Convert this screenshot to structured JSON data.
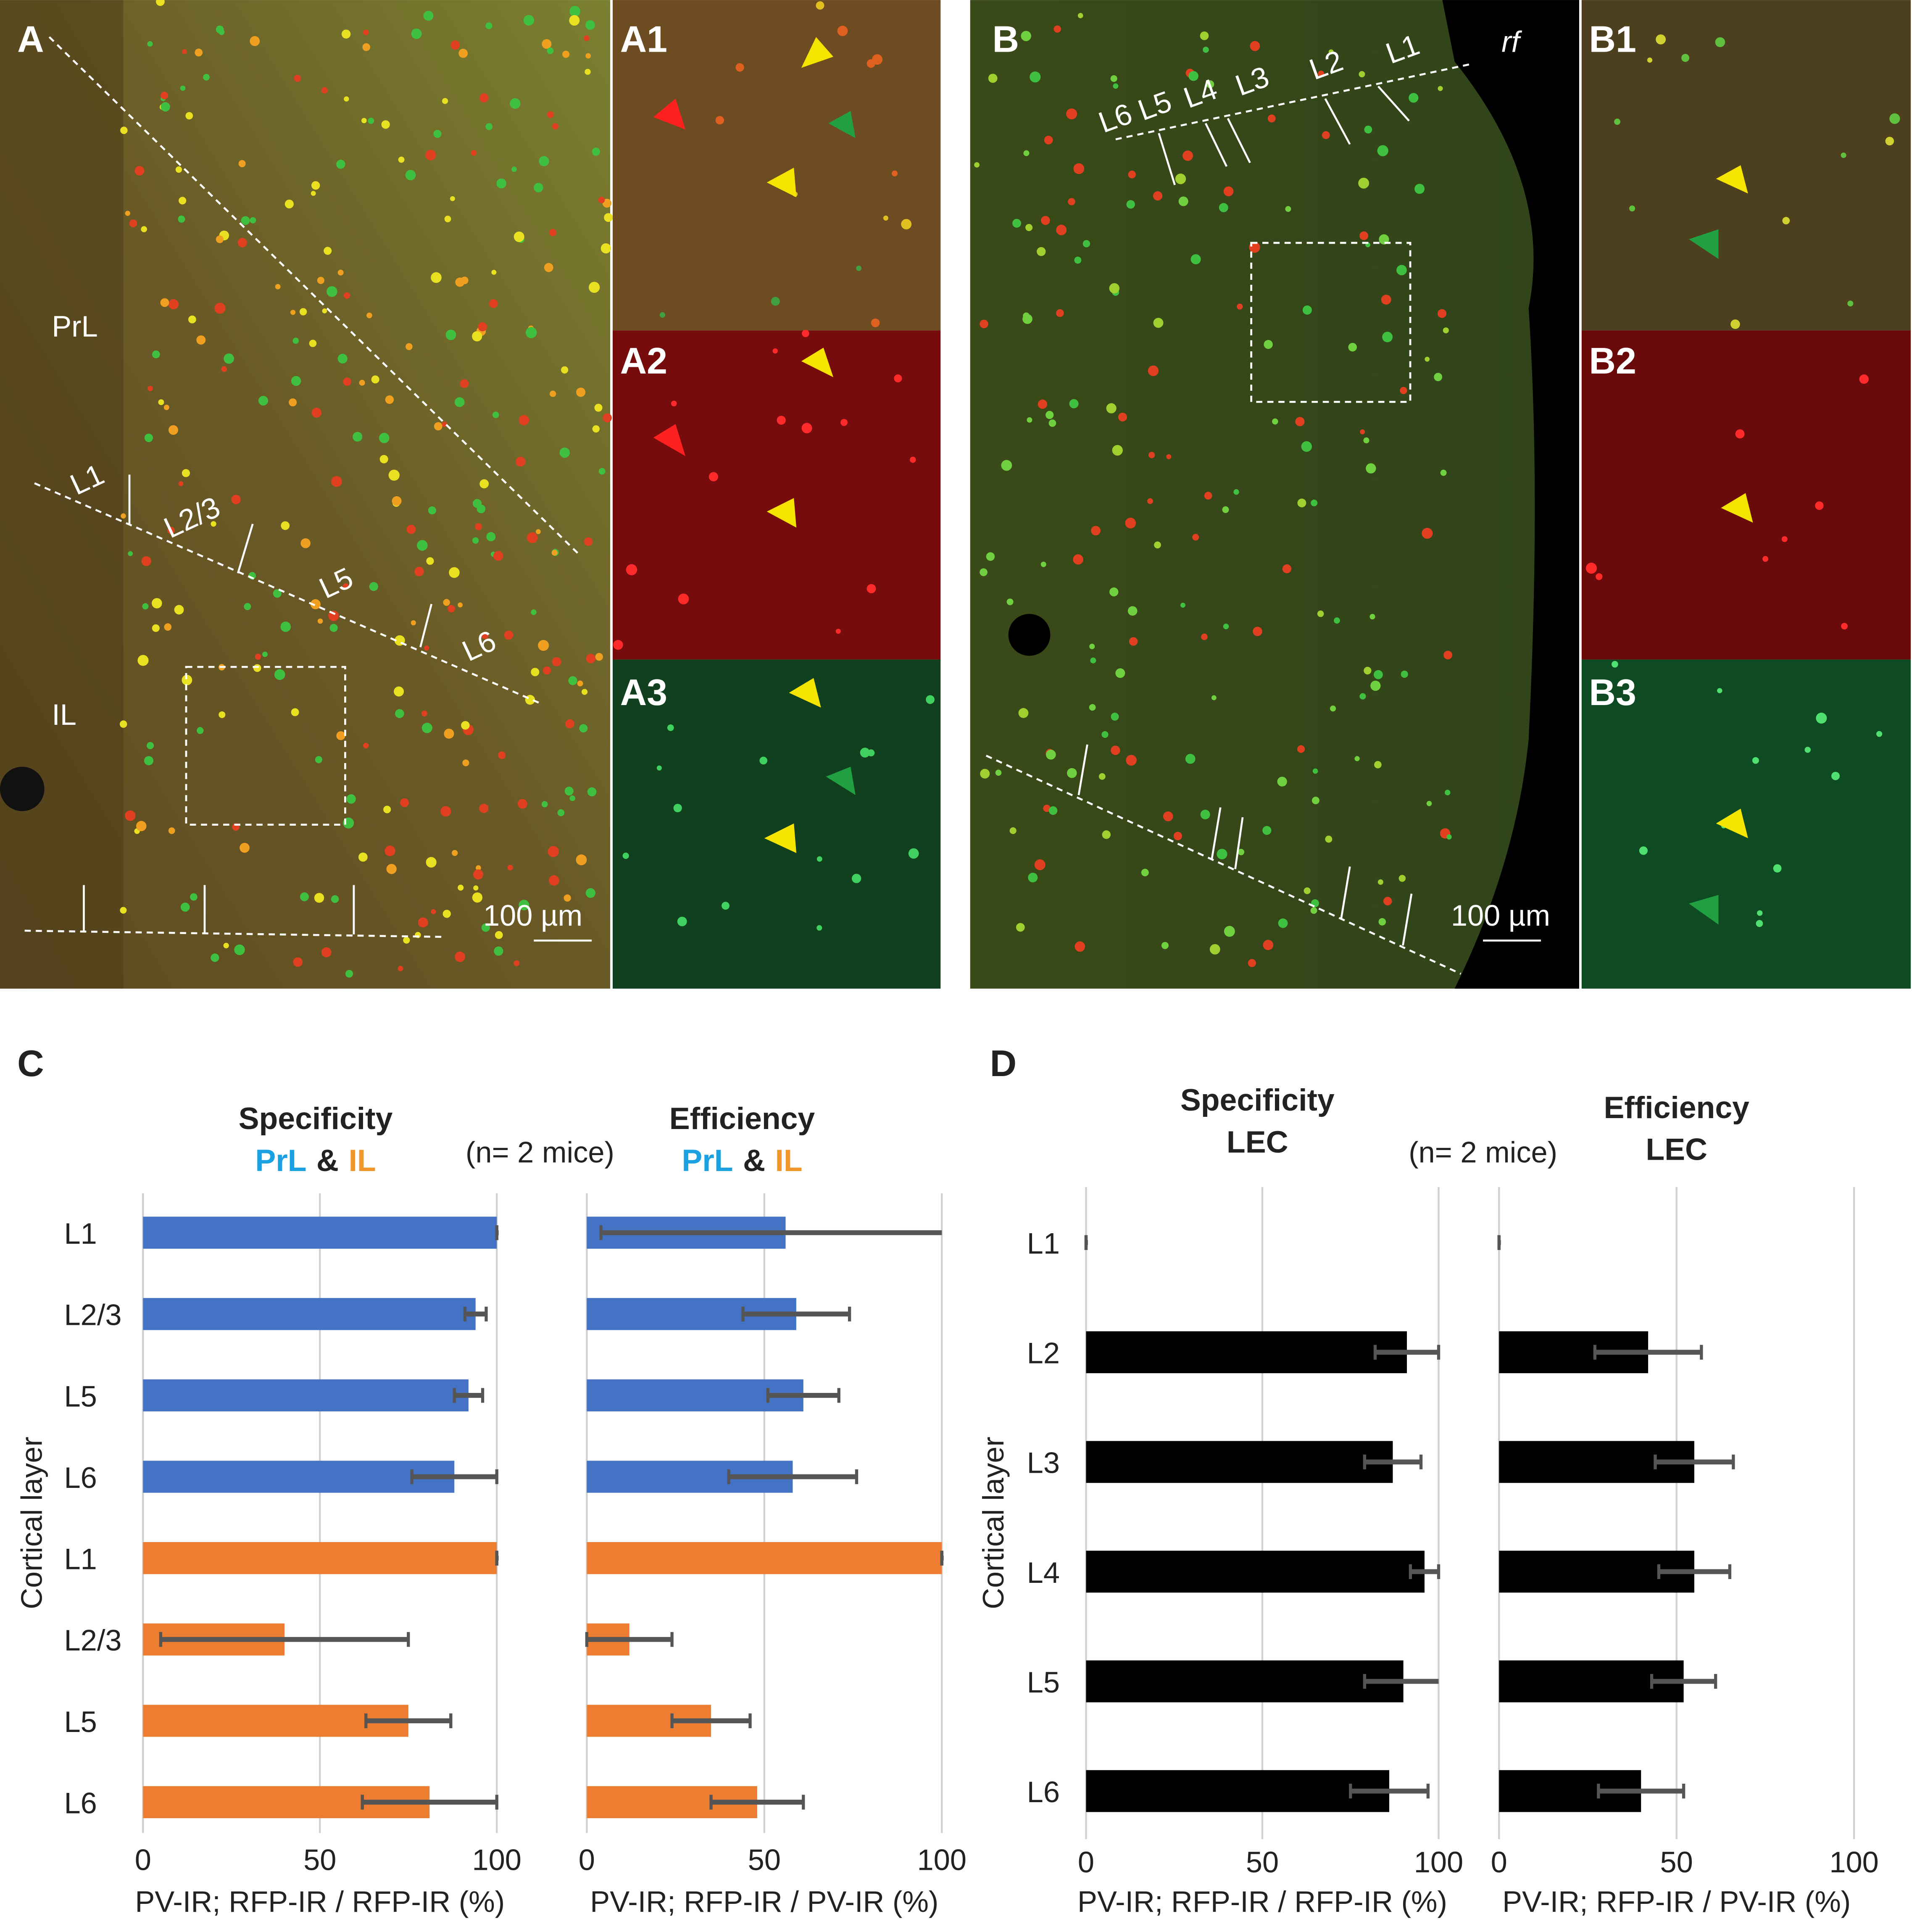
{
  "images": {
    "A": {
      "label": "A",
      "regions": [
        "PrL",
        "IL"
      ],
      "layers": [
        "L1",
        "L2/3",
        "L5",
        "L6"
      ],
      "scale_bar": "100 µm"
    },
    "A1": "A1",
    "A2": "A2",
    "A3": "A3",
    "B": {
      "label": "B",
      "region": "rf",
      "layers": [
        "L6",
        "L5",
        "L4",
        "L3",
        "L2",
        "L1"
      ],
      "scale_bar": "100 µm"
    },
    "B1": "B1",
    "B2": "B2",
    "B3": "B3"
  },
  "chart_data": [
    {
      "type": "bar",
      "orientation": "horizontal",
      "panel": "C",
      "title": "Specificity",
      "subtitle": [
        {
          "text": "PrL",
          "color": "#1ba1e2"
        },
        {
          "text": "&",
          "color": "#222222"
        },
        {
          "text": "IL",
          "color": "#f0962a"
        }
      ],
      "note": "(n= 2 mice)",
      "ylabel": "Cortical layer",
      "categories": [
        "L1",
        "L2/3",
        "L5",
        "L6",
        "L1",
        "L2/3",
        "L5",
        "L6"
      ],
      "values": [
        100,
        94,
        92,
        88,
        100,
        40,
        75,
        81
      ],
      "errors": [
        0,
        3,
        4,
        12,
        0,
        35,
        12,
        19
      ],
      "colors": [
        "#4472c4",
        "#4472c4",
        "#4472c4",
        "#4472c4",
        "#ed7d31",
        "#ed7d31",
        "#ed7d31",
        "#ed7d31"
      ],
      "xlim": [
        0,
        100
      ],
      "xticks": [
        0,
        50,
        100
      ],
      "xlabel": "PV-IR; RFP-IR / RFP-IR (%)",
      "grid": true
    },
    {
      "type": "bar",
      "orientation": "horizontal",
      "title": "Efficiency",
      "subtitle": [
        {
          "text": "PrL",
          "color": "#1ba1e2"
        },
        {
          "text": "&",
          "color": "#222222"
        },
        {
          "text": "IL",
          "color": "#f0962a"
        }
      ],
      "values": [
        56,
        59,
        61,
        58,
        100,
        12,
        35,
        48
      ],
      "errors": [
        52,
        15,
        10,
        18,
        0,
        12,
        11,
        13
      ],
      "colors": [
        "#4472c4",
        "#4472c4",
        "#4472c4",
        "#4472c4",
        "#ed7d31",
        "#ed7d31",
        "#ed7d31",
        "#ed7d31"
      ],
      "xlim": [
        0,
        100
      ],
      "xticks": [
        0,
        50,
        100
      ],
      "xlabel": "PV-IR; RFP-IR / PV-IR (%)",
      "grid": true
    },
    {
      "type": "bar",
      "orientation": "horizontal",
      "panel": "D",
      "title": "Specificity",
      "subtitle": [
        {
          "text": "LEC",
          "color": "#222222"
        }
      ],
      "note": "(n= 2 mice)",
      "ylabel": "Cortical layer",
      "categories": [
        "L1",
        "L2",
        "L3",
        "L4",
        "L5",
        "L6"
      ],
      "values": [
        0,
        91,
        87,
        96,
        90,
        86
      ],
      "errors": [
        0,
        9,
        8,
        4,
        11,
        11
      ],
      "color": "#000000",
      "xlim": [
        0,
        100
      ],
      "xticks": [
        0,
        50,
        100
      ],
      "xlabel": "PV-IR; RFP-IR / RFP-IR (%)",
      "grid": true
    },
    {
      "type": "bar",
      "orientation": "horizontal",
      "title": "Efficiency",
      "subtitle": [
        {
          "text": "LEC",
          "color": "#222222"
        }
      ],
      "values": [
        0,
        42,
        55,
        55,
        52,
        40
      ],
      "errors": [
        0,
        15,
        11,
        10,
        9,
        12
      ],
      "color": "#000000",
      "xlim": [
        0,
        100
      ],
      "xticks": [
        0,
        50,
        100
      ],
      "xlabel": "PV-IR; RFP-IR / PV-IR (%)",
      "grid": true
    }
  ]
}
